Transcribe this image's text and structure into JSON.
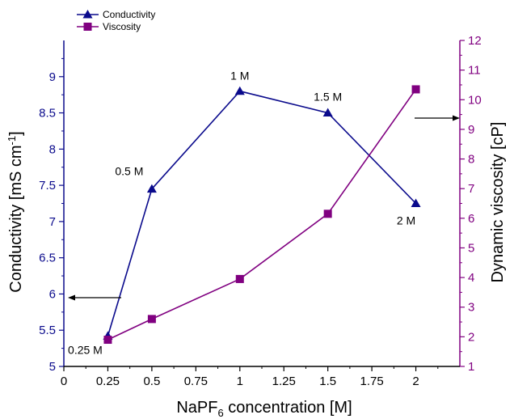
{
  "chart_data": {
    "type": "line",
    "title": "",
    "xlabel": {
      "main": "NaPF",
      "sub": "6",
      "rest": " concentration [M]"
    },
    "ylabel_left": {
      "main": "Conductivity [mS cm",
      "sup": "-1",
      "rest": "]"
    },
    "ylabel_right": "Dynamic viscosity [cP]",
    "xlim": [
      0,
      2.25
    ],
    "ylim_left": [
      5,
      9.5
    ],
    "ylim_right": [
      1,
      12
    ],
    "x_ticks": [
      "0",
      "0.25",
      "0.5",
      "0.75",
      "1",
      "1.25",
      "1.5",
      "1.75",
      "2"
    ],
    "y_left_ticks": [
      "5",
      "5.5",
      "6",
      "6.5",
      "7",
      "7.5",
      "8",
      "8.5",
      "9"
    ],
    "y_right_ticks": [
      "1",
      "2",
      "3",
      "4",
      "5",
      "6",
      "7",
      "8",
      "9",
      "10",
      "11",
      "12"
    ],
    "legend_position": "top-left",
    "series": [
      {
        "name": "Conductivity",
        "axis": "left",
        "marker": "triangle",
        "color": "#0a0a8c",
        "x": [
          0.25,
          0.5,
          1,
          1.5,
          2
        ],
        "values": [
          5.42,
          7.45,
          8.8,
          8.5,
          7.25
        ]
      },
      {
        "name": "Viscosity",
        "axis": "right",
        "marker": "square",
        "color": "#800080",
        "x": [
          0.25,
          0.5,
          1,
          1.5,
          2
        ],
        "values": [
          1.9,
          2.6,
          3.95,
          6.15,
          10.35
        ]
      }
    ],
    "annotations": [
      {
        "text": "0.25 M"
      },
      {
        "text": "0.5 M"
      },
      {
        "text": "1 M"
      },
      {
        "text": "1.5 M"
      },
      {
        "text": "2 M"
      }
    ]
  }
}
